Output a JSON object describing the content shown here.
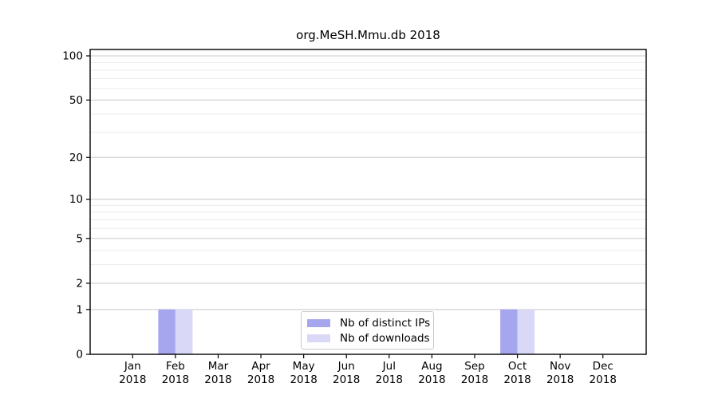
{
  "chart_data": {
    "type": "bar",
    "title": "org.MeSH.Mmu.db 2018",
    "categories": [
      "Jan",
      "Feb",
      "Mar",
      "Apr",
      "May",
      "Jun",
      "Jul",
      "Aug",
      "Sep",
      "Oct",
      "Nov",
      "Dec"
    ],
    "category_year": "2018",
    "series": [
      {
        "name": "Nb of distinct IPs",
        "color": "#a6a6ef",
        "values": [
          0,
          1,
          0,
          0,
          0,
          0,
          0,
          0,
          0,
          1,
          0,
          0
        ]
      },
      {
        "name": "Nb of downloads",
        "color": "#d9d9f7",
        "values": [
          0,
          1,
          0,
          0,
          0,
          0,
          0,
          0,
          0,
          1,
          0,
          0
        ]
      }
    ],
    "xlabel": "",
    "ylabel": "",
    "y_scale": "log1p",
    "y_ticks": [
      0,
      1,
      2,
      5,
      10,
      20,
      50,
      100
    ],
    "y_minor_grid": [
      3,
      4,
      6,
      7,
      8,
      9,
      30,
      40,
      60,
      70,
      80,
      90
    ],
    "ylim": [
      0,
      110
    ],
    "grid": true,
    "legend_position": "bottom-center",
    "colors": {
      "major_grid": "#c8c8c8",
      "minor_grid": "#ececec",
      "axis": "#000000",
      "text": "#000000"
    }
  }
}
